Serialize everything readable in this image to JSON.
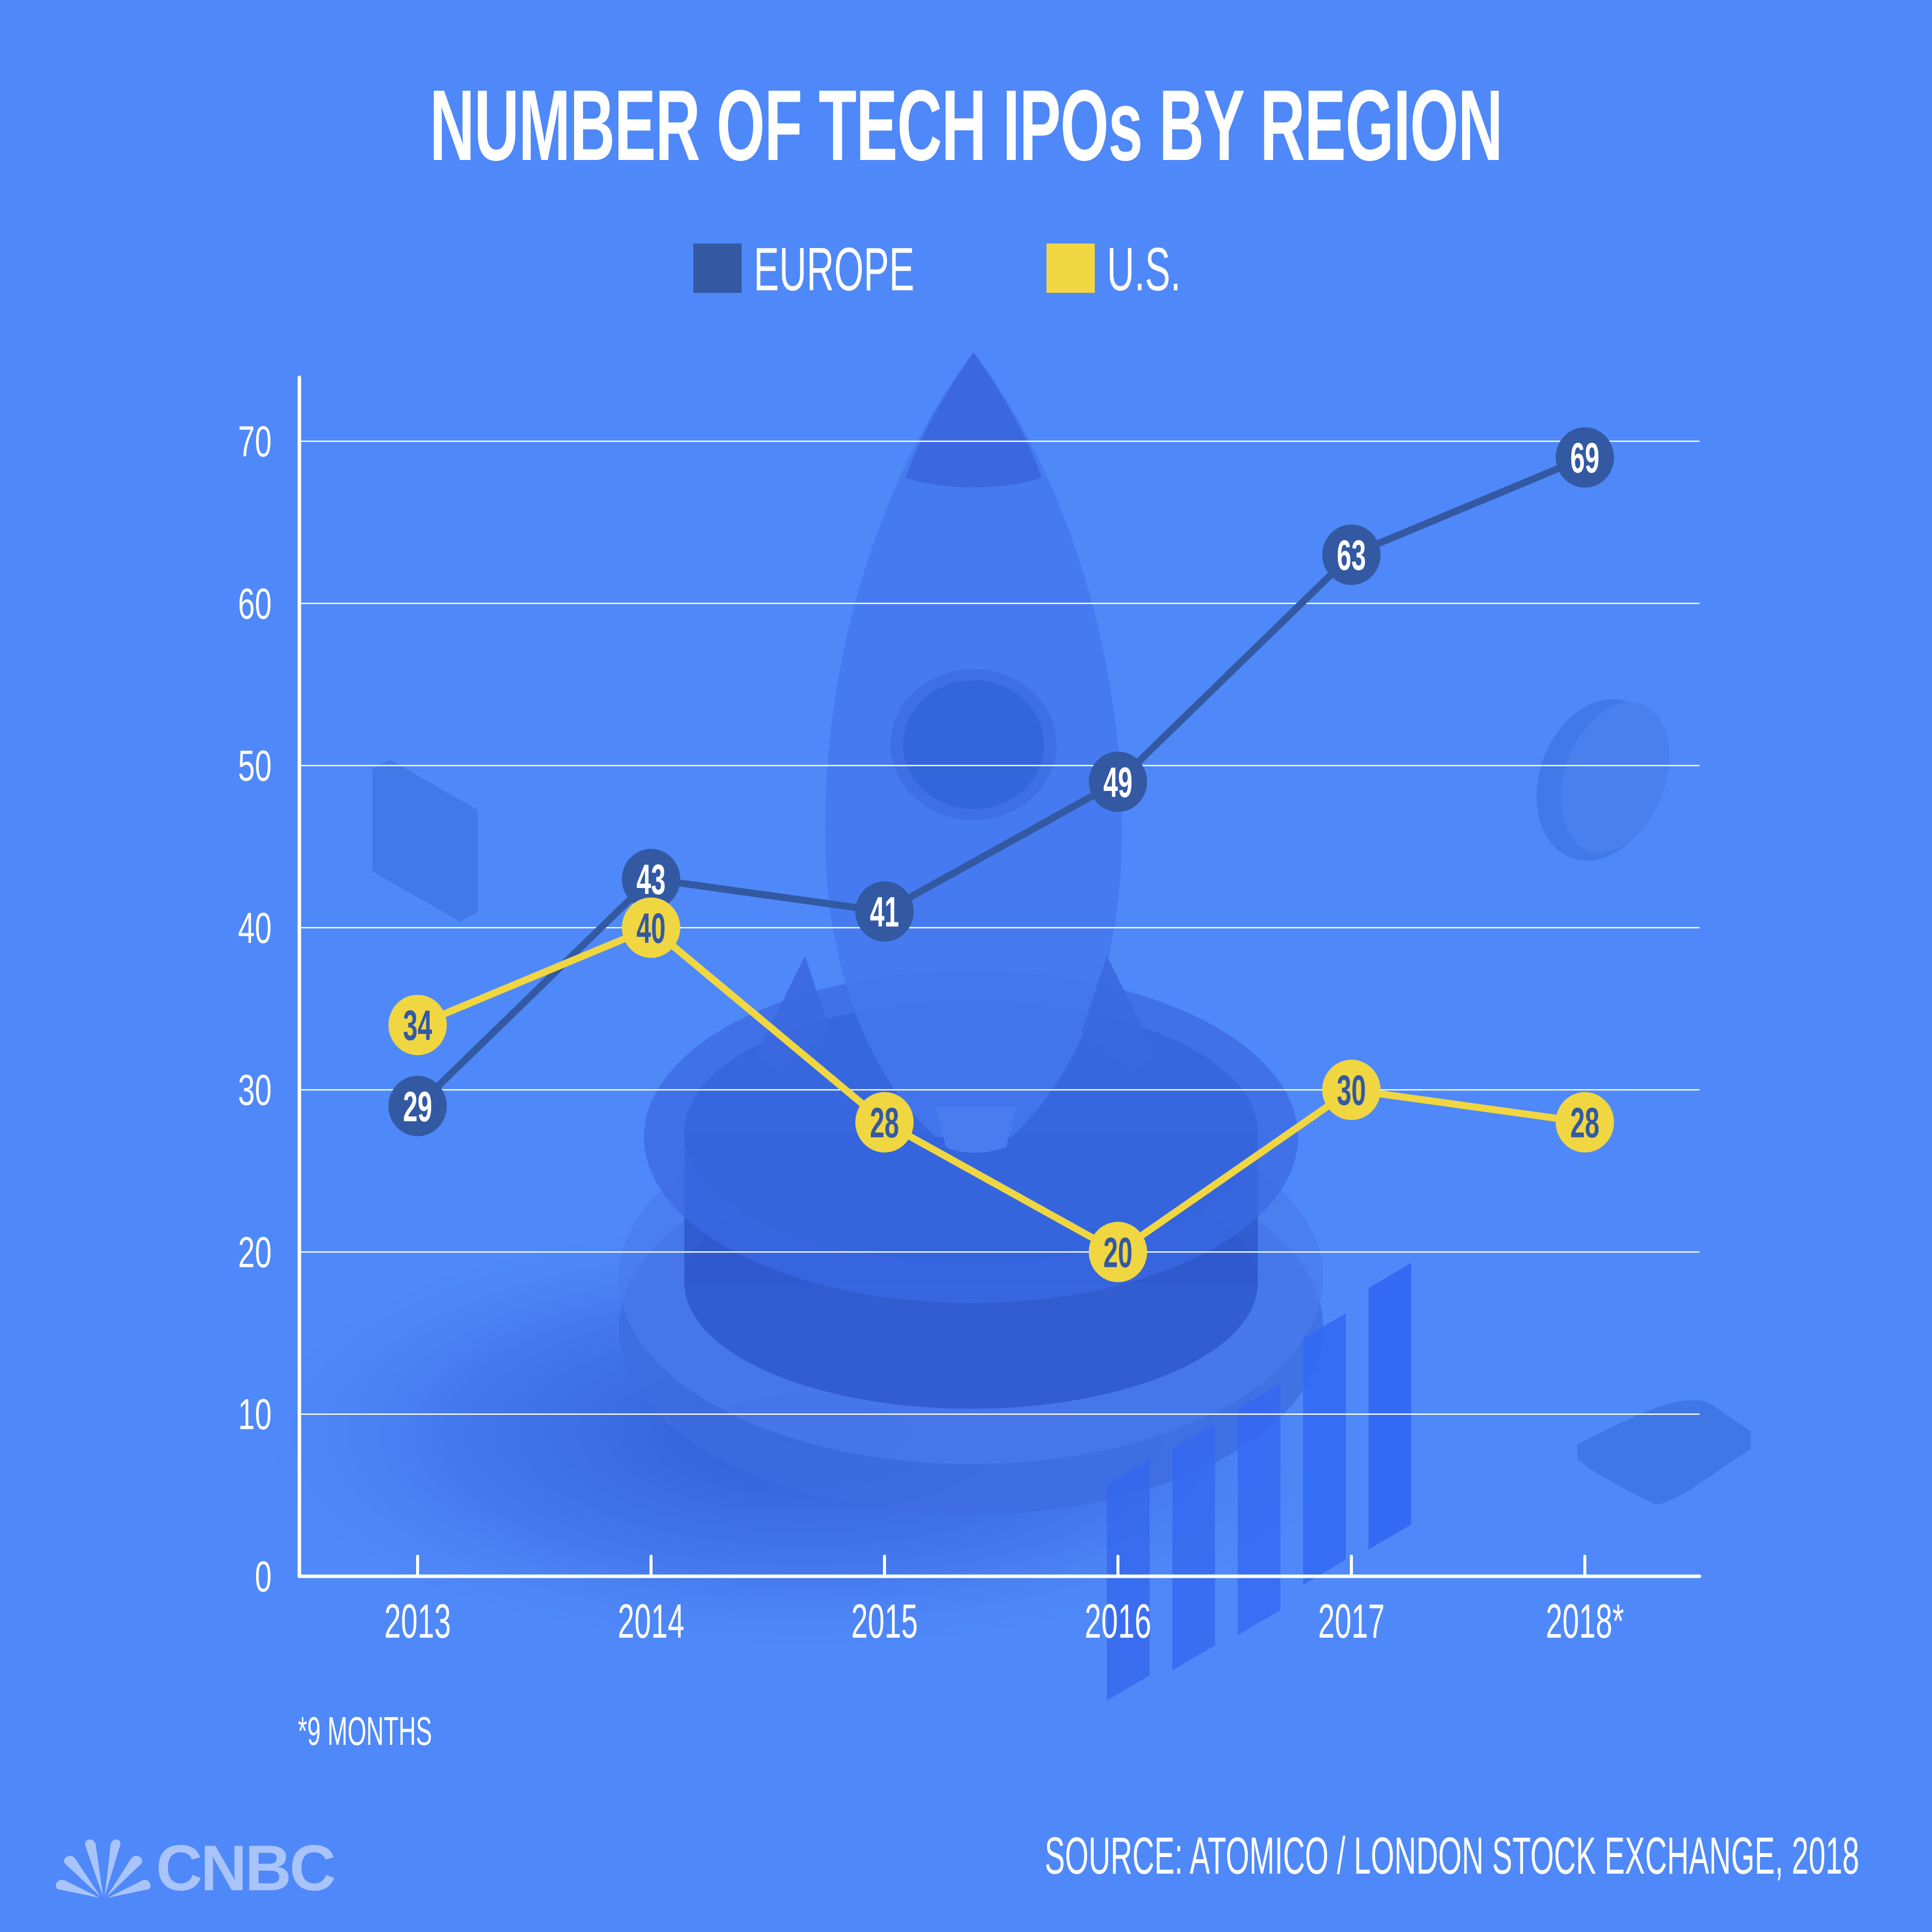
{
  "chart_data": {
    "type": "line",
    "title": "NUMBER OF TECH IPOs BY REGION",
    "xlabel": "",
    "ylabel": "",
    "categories": [
      "2013",
      "2014",
      "2015",
      "2016",
      "2017",
      "2018*"
    ],
    "series": [
      {
        "name": "EUROPE",
        "color": "#3359a3",
        "label_color": "#ffffff",
        "values": [
          29,
          43,
          41,
          49,
          63,
          69
        ]
      },
      {
        "name": "U.S.",
        "color": "#f0d641",
        "label_color": "#3359a3",
        "values": [
          34,
          40,
          28,
          20,
          30,
          28
        ]
      }
    ],
    "ylim": [
      0,
      70
    ],
    "yticks": [
      0,
      10,
      20,
      30,
      40,
      50,
      60,
      70
    ],
    "grid": true,
    "legend_position": "top-center",
    "data_labels": true,
    "footnote": "*9 MONTHS",
    "source": "SOURCE: ATOMICO / LONDON STOCK EXCHANGE, 2018"
  },
  "branding": {
    "logo_text": "CNBC",
    "logo_icon": "peacock-icon"
  },
  "colors": {
    "background": "#4f88f8",
    "axis": "#ffffff",
    "decor_dark": "#3b6fe0",
    "decor_mid": "#4479ea"
  }
}
